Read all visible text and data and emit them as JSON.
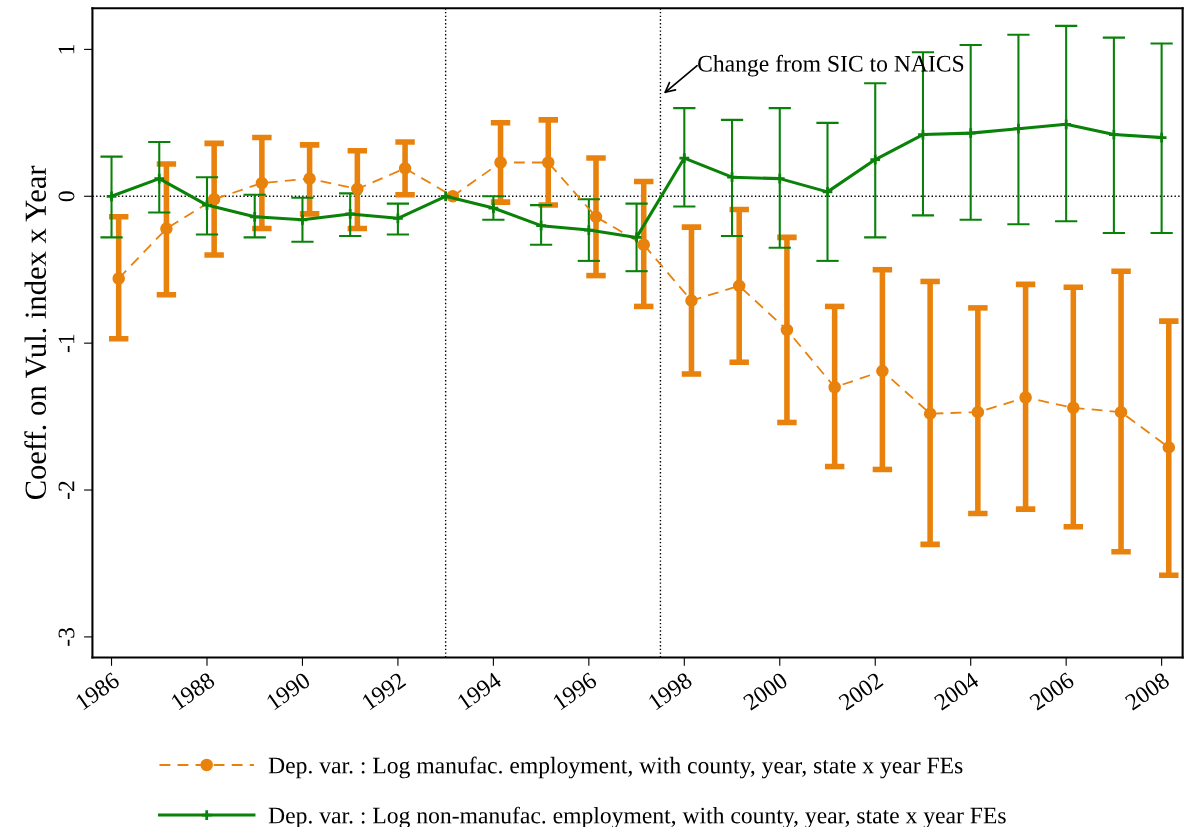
{
  "chart_data": {
    "type": "line",
    "ylabel": "Coeff. on Vul. index x Year",
    "xlim": [
      1985.6,
      2008.44
    ],
    "xticks": [
      1986,
      1988,
      1990,
      1992,
      1994,
      1996,
      1998,
      2000,
      2002,
      2004,
      2006,
      2008
    ],
    "ylim": [
      -3.14,
      1.28
    ],
    "yticks": [
      {
        "value": -3,
        "label": "-3"
      },
      {
        "value": -2,
        "label": "-2"
      },
      {
        "value": -1,
        "label": "-1"
      },
      0,
      1
    ],
    "grid": false,
    "legend": "bottom",
    "ref_lines": [
      {
        "axis": "x",
        "value": 1993,
        "color": "#000000",
        "line_style": "dotted"
      },
      {
        "axis": "x",
        "value": 1997.5,
        "color": "#000000",
        "line_style": "dotted"
      },
      {
        "axis": "y",
        "value": 0,
        "color": "#000000",
        "line_style": "dotted"
      }
    ],
    "annotations": [
      {
        "text": "Change from SIC to NAICS",
        "x": 1997.57,
        "y": 0.7
      }
    ],
    "series": [
      {
        "name": "Dep. var. : Log manufac. employment, with county, year, state x year FEs",
        "color": "#e8820c",
        "marker": "circle",
        "line_style": "dashed",
        "x": [
          1986.15,
          1987.15,
          1988.15,
          1989.15,
          1990.15,
          1991.15,
          1992.15,
          1993.15,
          1994.15,
          1995.15,
          1996.15,
          1997.15,
          1998.15,
          1999.15,
          2000.15,
          2001.15,
          2002.15,
          2003.15,
          2004.15,
          2005.15,
          2006.15,
          2007.15,
          2008.15
        ],
        "values": [
          -0.56,
          -0.22,
          -0.02,
          0.09,
          0.12,
          0.05,
          0.19,
          0,
          0.23,
          0.23,
          -0.14,
          -0.33,
          -0.71,
          -0.61,
          -0.91,
          -1.3,
          -1.19,
          -1.48,
          -1.47,
          -1.37,
          -1.44,
          -1.47,
          -1.71
        ],
        "errors": [
          [
            -0.97,
            -0.14
          ],
          [
            -0.67,
            0.22
          ],
          [
            -0.4,
            0.36
          ],
          [
            -0.22,
            0.4
          ],
          [
            -0.12,
            0.35
          ],
          [
            -0.22,
            0.31
          ],
          [
            0.01,
            0.37
          ],
          null,
          [
            -0.04,
            0.5
          ],
          [
            -0.06,
            0.52
          ],
          [
            -0.54,
            0.26
          ],
          [
            -0.75,
            0.1
          ],
          [
            -1.21,
            -0.21
          ],
          [
            -1.13,
            -0.09
          ],
          [
            -1.54,
            -0.28
          ],
          [
            -1.84,
            -0.75
          ],
          [
            -1.86,
            -0.5
          ],
          [
            -2.37,
            -0.58
          ],
          [
            -2.16,
            -0.76
          ],
          [
            -2.13,
            -0.6
          ],
          [
            -2.25,
            -0.62
          ],
          [
            -2.42,
            -0.51
          ],
          [
            -2.58,
            -0.85
          ]
        ]
      },
      {
        "name": "Dep. var. : Log non-manufac. employment, with county, year, state x year FEs",
        "color": "#0a820a",
        "marker": "cross",
        "line_style": "solid",
        "x": [
          1986,
          1987,
          1988,
          1989,
          1990,
          1991,
          1992,
          1993,
          1994,
          1995,
          1996,
          1997,
          1998,
          1999,
          2000,
          2001,
          2002,
          2003,
          2004,
          2005,
          2006,
          2007,
          2008
        ],
        "values": [
          0,
          0.12,
          -0.06,
          -0.14,
          -0.16,
          -0.12,
          -0.15,
          0,
          -0.08,
          -0.2,
          -0.23,
          -0.28,
          0.26,
          0.13,
          0.12,
          0.03,
          0.25,
          0.42,
          0.43,
          0.46,
          0.49,
          0.42,
          0.4
        ],
        "errors": [
          [
            -0.28,
            0.27
          ],
          [
            -0.11,
            0.37
          ],
          [
            -0.26,
            0.13
          ],
          [
            -0.28,
            0.01
          ],
          [
            -0.31,
            -0.01
          ],
          [
            -0.27,
            0.02
          ],
          [
            -0.26,
            -0.05
          ],
          null,
          [
            -0.16,
            0
          ],
          [
            -0.33,
            -0.06
          ],
          [
            -0.44,
            -0.02
          ],
          [
            -0.51,
            -0.05
          ],
          [
            -0.07,
            0.6
          ],
          [
            -0.27,
            0.52
          ],
          [
            -0.35,
            0.6
          ],
          [
            -0.44,
            0.5
          ],
          [
            -0.28,
            0.77
          ],
          [
            -0.13,
            0.98
          ],
          [
            -0.16,
            1.03
          ],
          [
            -0.19,
            1.1
          ],
          [
            -0.17,
            1.16
          ],
          [
            -0.25,
            1.08
          ],
          [
            -0.25,
            1.04
          ]
        ]
      }
    ]
  }
}
